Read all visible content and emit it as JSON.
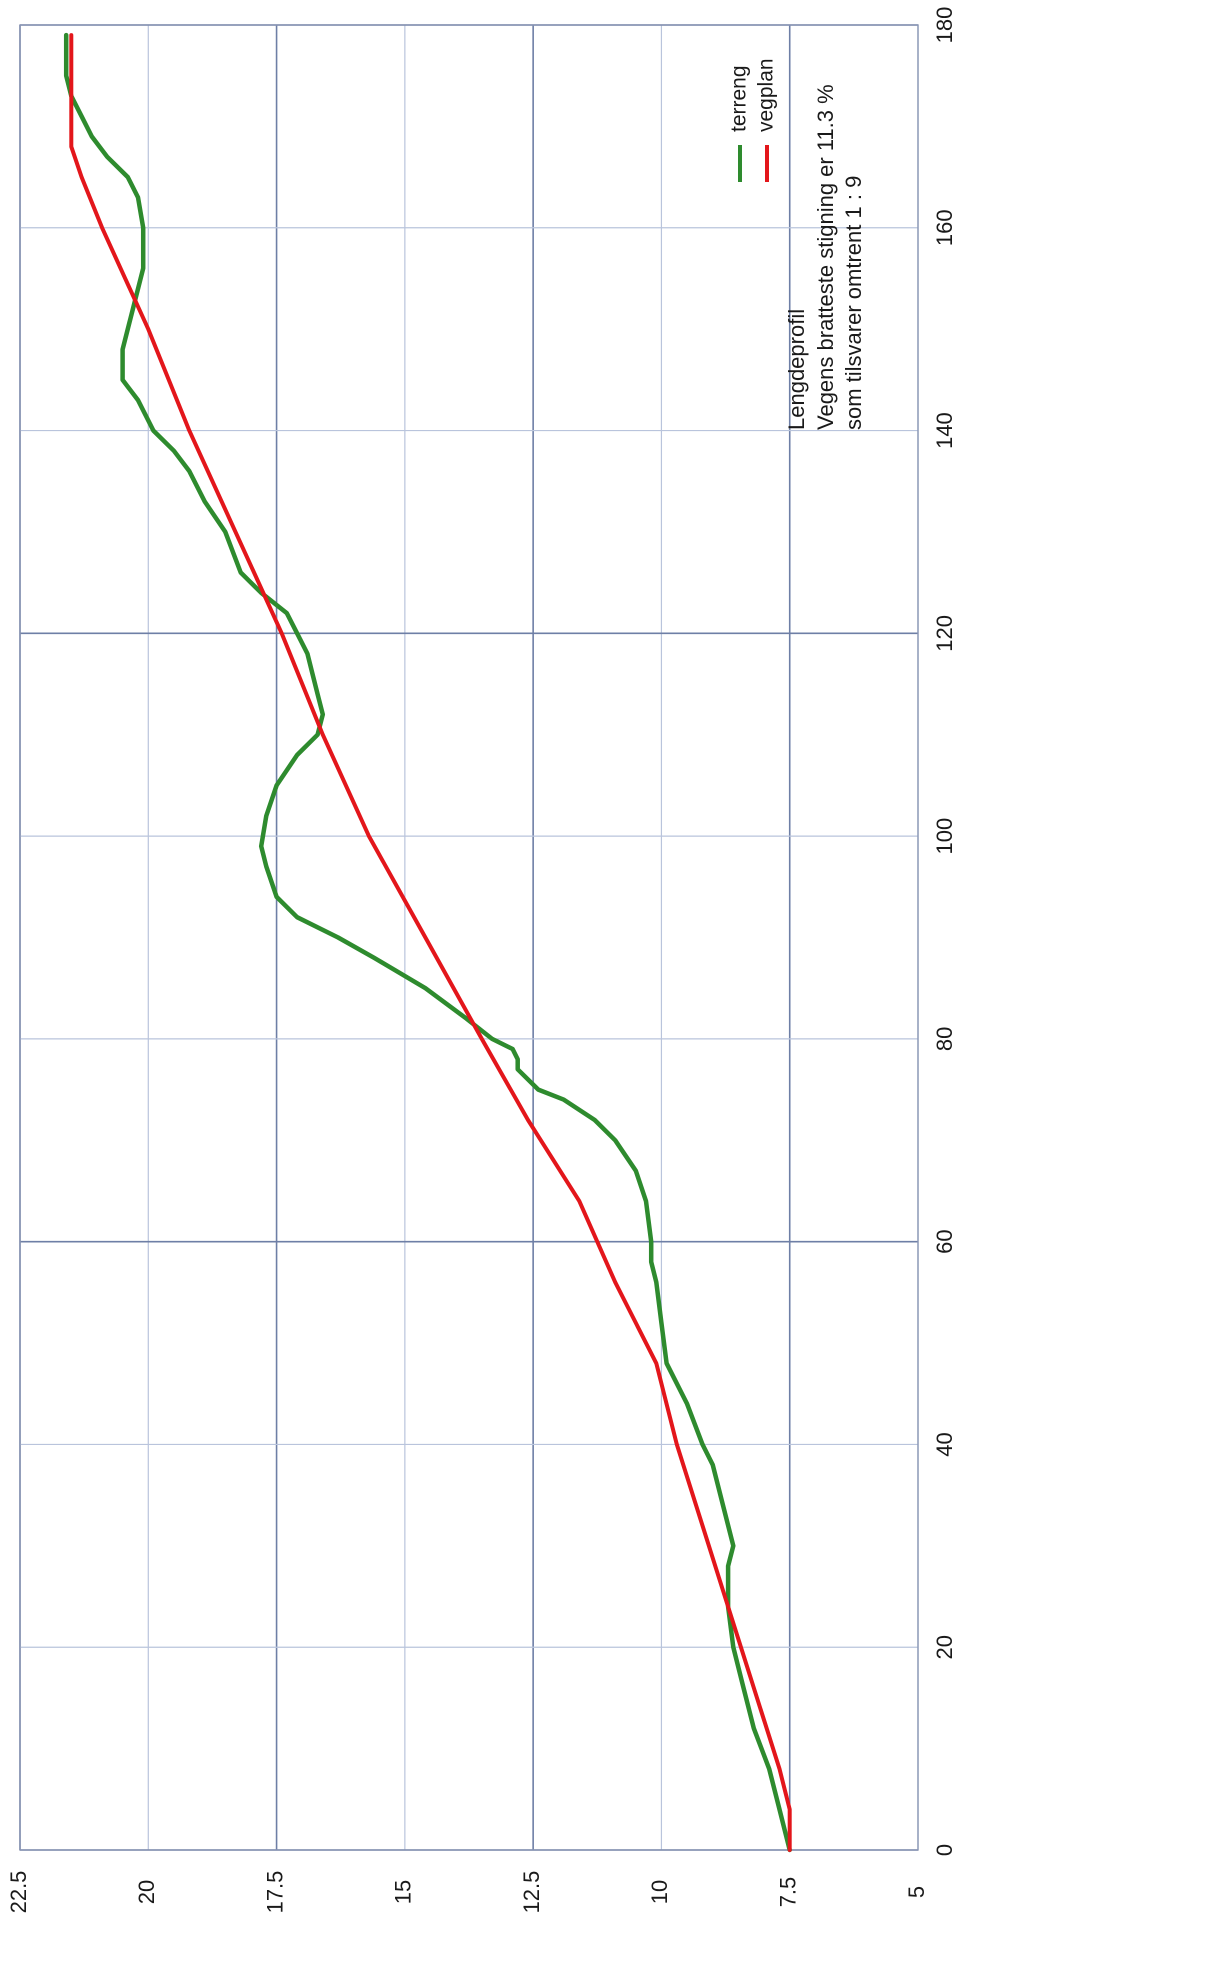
{
  "chart_data": {
    "type": "line",
    "title": "Lengdeprofil",
    "subtitle_lines": [
      "Vegens bratteste stigning er 11.3 %",
      "som tilsvarer omtrent 1 : 9"
    ],
    "xlabel": "",
    "ylabel": "",
    "xlim": [
      0,
      180
    ],
    "ylim": [
      5,
      22.5
    ],
    "x_ticks": [
      "0",
      "20",
      "40",
      "60",
      "80",
      "100",
      "120",
      "140",
      "160",
      "180"
    ],
    "y_ticks": [
      "5",
      "7.5",
      "10",
      "12.5",
      "15",
      "17.5",
      "20",
      "22.5"
    ],
    "grid": true,
    "legend_position": "upper-left-of-plot-area",
    "series": [
      {
        "name": "terreng",
        "color": "#2e8b2e",
        "points": [
          [
            0,
            7.5
          ],
          [
            4,
            7.7
          ],
          [
            8,
            7.9
          ],
          [
            12,
            8.2
          ],
          [
            16,
            8.4
          ],
          [
            20,
            8.6
          ],
          [
            24,
            8.7
          ],
          [
            28,
            8.7
          ],
          [
            30,
            8.6
          ],
          [
            34,
            8.8
          ],
          [
            38,
            9.0
          ],
          [
            40,
            9.2
          ],
          [
            44,
            9.5
          ],
          [
            48,
            9.9
          ],
          [
            52,
            10.0
          ],
          [
            56,
            10.1
          ],
          [
            58,
            10.2
          ],
          [
            60,
            10.2
          ],
          [
            64,
            10.3
          ],
          [
            67,
            10.5
          ],
          [
            70,
            10.9
          ],
          [
            72,
            11.3
          ],
          [
            74,
            11.9
          ],
          [
            75,
            12.4
          ],
          [
            77,
            12.8
          ],
          [
            78,
            12.8
          ],
          [
            79,
            12.9
          ],
          [
            80,
            13.3
          ],
          [
            82,
            13.8
          ],
          [
            85,
            14.6
          ],
          [
            88,
            15.6
          ],
          [
            90,
            16.3
          ],
          [
            92,
            17.1
          ],
          [
            94,
            17.5
          ],
          [
            97,
            17.7
          ],
          [
            99,
            17.8
          ],
          [
            102,
            17.7
          ],
          [
            105,
            17.5
          ],
          [
            108,
            17.1
          ],
          [
            110,
            16.7
          ],
          [
            112,
            16.6
          ],
          [
            114,
            16.7
          ],
          [
            116,
            16.8
          ],
          [
            118,
            16.9
          ],
          [
            120,
            17.1
          ],
          [
            122,
            17.3
          ],
          [
            124,
            17.8
          ],
          [
            126,
            18.2
          ],
          [
            130,
            18.5
          ],
          [
            133,
            18.9
          ],
          [
            136,
            19.2
          ],
          [
            138,
            19.5
          ],
          [
            140,
            19.9
          ],
          [
            143,
            20.2
          ],
          [
            145,
            20.5
          ],
          [
            148,
            20.5
          ],
          [
            152,
            20.3
          ],
          [
            156,
            20.1
          ],
          [
            160,
            20.1
          ],
          [
            163,
            20.2
          ],
          [
            165,
            20.4
          ],
          [
            167,
            20.8
          ],
          [
            169,
            21.1
          ],
          [
            171,
            21.3
          ],
          [
            173,
            21.5
          ],
          [
            175,
            21.6
          ],
          [
            176,
            21.6
          ],
          [
            179,
            21.6
          ]
        ]
      },
      {
        "name": "vegplan",
        "color": "#e3161b",
        "points": [
          [
            0,
            7.5
          ],
          [
            4,
            7.5
          ],
          [
            8,
            7.7
          ],
          [
            16,
            8.2
          ],
          [
            24,
            8.7
          ],
          [
            32,
            9.2
          ],
          [
            40,
            9.7
          ],
          [
            48,
            10.1
          ],
          [
            56,
            10.9
          ],
          [
            64,
            11.6
          ],
          [
            72,
            12.6
          ],
          [
            80,
            13.5
          ],
          [
            90,
            14.6
          ],
          [
            100,
            15.7
          ],
          [
            110,
            16.6
          ],
          [
            120,
            17.4
          ],
          [
            130,
            18.3
          ],
          [
            140,
            19.2
          ],
          [
            150,
            20.0
          ],
          [
            160,
            20.9
          ],
          [
            165,
            21.3
          ],
          [
            168,
            21.5
          ],
          [
            172,
            21.5
          ],
          [
            179,
            21.5
          ]
        ]
      }
    ]
  }
}
